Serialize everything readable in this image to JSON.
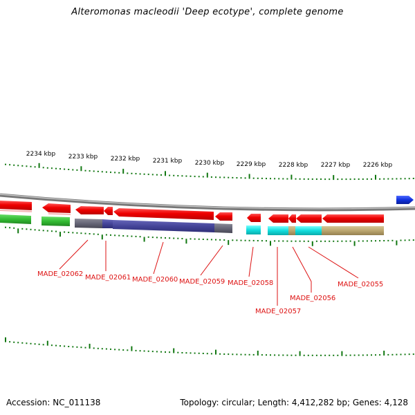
{
  "header": {
    "title": "Alteromonas macleodii 'Deep ecotype', complete genome"
  },
  "footer": {
    "accession": "Accession: NC_011138",
    "summary": "Topology: circular; Length: 4,412,282 bp; Genes: 4,128"
  },
  "scale": {
    "tick_labels": [
      "2234 kbp",
      "2233 kbp",
      "2232 kbp",
      "2231 kbp",
      "2230 kbp",
      "2229 kbp",
      "2228 kbp",
      "2227 kbp",
      "2226 kbp"
    ]
  },
  "genes": [
    {
      "label": "MADE_02062"
    },
    {
      "label": "MADE_02061"
    },
    {
      "label": "MADE_02060"
    },
    {
      "label": "MADE_02059"
    },
    {
      "label": "MADE_02058"
    },
    {
      "label": "MADE_02057"
    },
    {
      "label": "MADE_02056"
    },
    {
      "label": "MADE_02055"
    }
  ],
  "colors": {
    "gene_arrow": "#ee1111",
    "forward_gene": "#1030dd",
    "cog_green": "#33bb33",
    "cog_gray": "#666677",
    "cog_purple": "#444499",
    "cog_cyan": "#11dddd",
    "cog_tan": "#bba66f",
    "tick_green": "#117711",
    "label_red": "#dd1111"
  }
}
